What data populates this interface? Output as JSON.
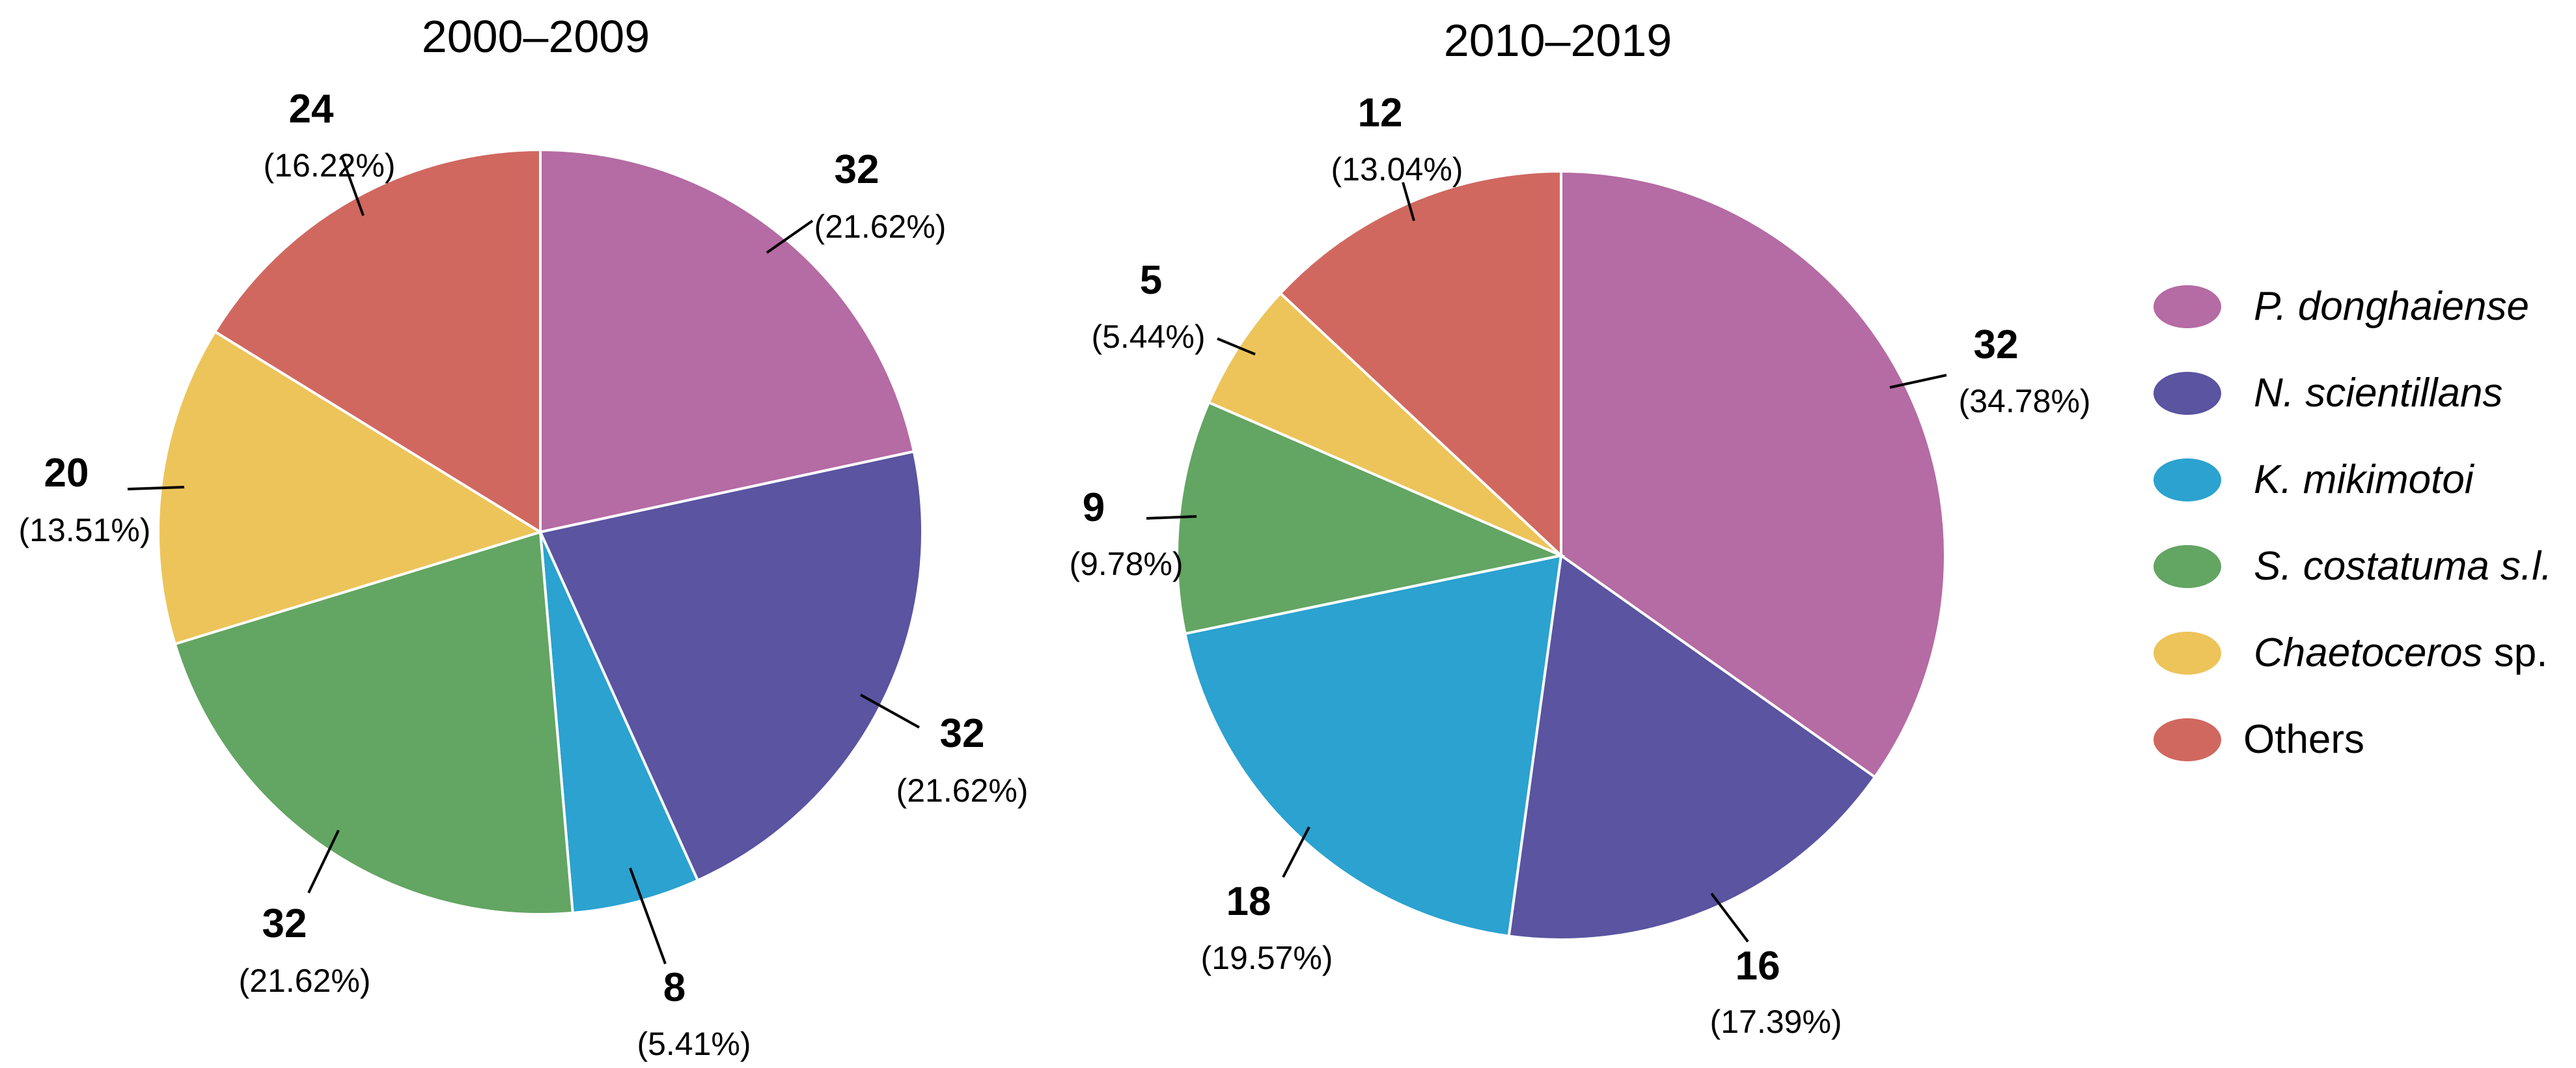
{
  "legend": {
    "items": [
      {
        "label": "P. donghaiense",
        "color": "#B56BA3",
        "italic": true
      },
      {
        "label": "N. scientillans",
        "color": "#5A54A1",
        "italic": true
      },
      {
        "label": "K. mikimotoi",
        "color": "#2BA2CF",
        "italic": true
      },
      {
        "label": "S. costatuma s.l.",
        "color": "#63A562",
        "italic": true
      },
      {
        "label": "Chaetoceros",
        "suffix": " sp.",
        "color": "#EDC45A",
        "italic": true
      },
      {
        "label": "Others",
        "color": "#D06860",
        "italic": false
      }
    ]
  },
  "chart_data": [
    {
      "type": "pie",
      "title": "2000–2009",
      "categories": [
        "P. donghaiense",
        "N. scientillans",
        "K. mikimotoi",
        "S. costatuma s.l.",
        "Chaetoceros sp.",
        "Others"
      ],
      "values": [
        32,
        32,
        8,
        32,
        20,
        24
      ],
      "percent_labels": [
        "(21.62%)",
        "(21.62%)",
        "(5.41%)",
        "(21.62%)",
        "(13.51%)",
        "(16.22%)"
      ],
      "value_labels": [
        "32",
        "32",
        "8",
        "32",
        "20",
        "24"
      ],
      "start_angle": "12 o'clock",
      "direction": "clockwise"
    },
    {
      "type": "pie",
      "title": "2010–2019",
      "categories": [
        "P. donghaiense",
        "N. scientillans",
        "K. mikimotoi",
        "S. costatuma s.l.",
        "Chaetoceros sp.",
        "Others"
      ],
      "values": [
        32,
        16,
        18,
        9,
        5,
        12
      ],
      "percent_labels": [
        "(34.78%)",
        "(17.39%)",
        "(19.57%)",
        "(9.78%)",
        "(5.44%)",
        "(13.04%)"
      ],
      "value_labels": [
        "32",
        "16",
        "18",
        "9",
        "5",
        "12"
      ],
      "start_angle": "12 o'clock",
      "direction": "clockwise"
    }
  ]
}
